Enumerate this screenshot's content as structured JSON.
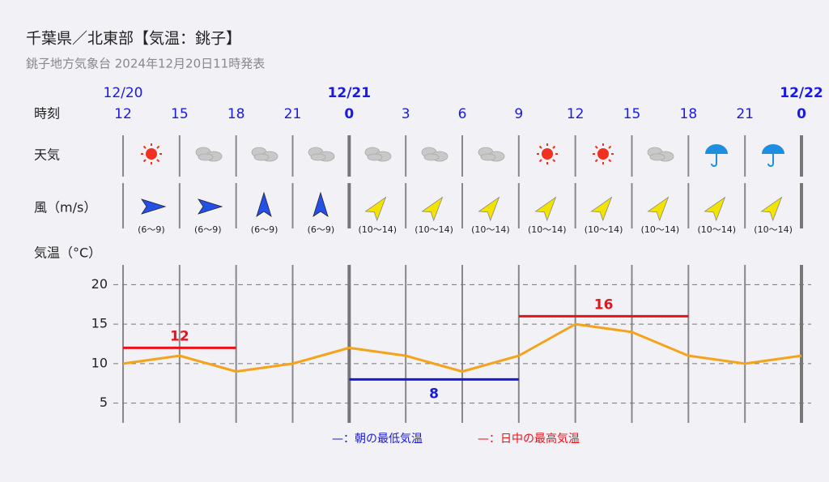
{
  "chart_data": {
    "type": "line",
    "title": "千葉県／北東部【気温：銚子】",
    "subtitle": "銚子地方気象台 2024年12月20日11時発表",
    "row_labels": {
      "time": "時刻",
      "weather": "天気",
      "wind": "風（m/s）",
      "temp": "気温（°C）"
    },
    "dates": [
      "12/20",
      null,
      null,
      null,
      "12/21",
      null,
      null,
      null,
      null,
      null,
      null,
      null,
      "12/22"
    ],
    "categories": [
      "12",
      "15",
      "18",
      "21",
      "0",
      "3",
      "6",
      "9",
      "12",
      "15",
      "18",
      "21",
      "0"
    ],
    "wind": [
      "(6〜9)",
      "(6〜9)",
      "(6〜9)",
      "(6〜9)",
      "(10〜14)",
      "(10〜14)",
      "(10〜14)",
      "(10〜14)",
      "(10〜14)",
      "(10〜14)",
      "(10〜14)",
      "(10〜14)"
    ],
    "series": [
      {
        "color": "#f5a31a",
        "values": [
          10,
          11,
          9,
          10,
          12,
          11,
          9,
          11,
          15,
          14,
          11,
          10,
          11
        ]
      }
    ],
    "ylim": [
      2.5,
      22.5
    ],
    "yticks": [
      5,
      10,
      15,
      20
    ],
    "grid": true,
    "min_temp": {
      "name": "—：朝の最低気温",
      "color": "#1a1ad6",
      "segments": [
        {
          "value": 8,
          "start": 4,
          "end": 7
        }
      ]
    },
    "max_temp": {
      "name": "—：日中の最高気温",
      "color": "#e8121a",
      "segments": [
        {
          "value": 12,
          "start": 0,
          "end": 2
        },
        {
          "value": 16,
          "start": 7,
          "end": 10
        }
      ]
    }
  }
}
